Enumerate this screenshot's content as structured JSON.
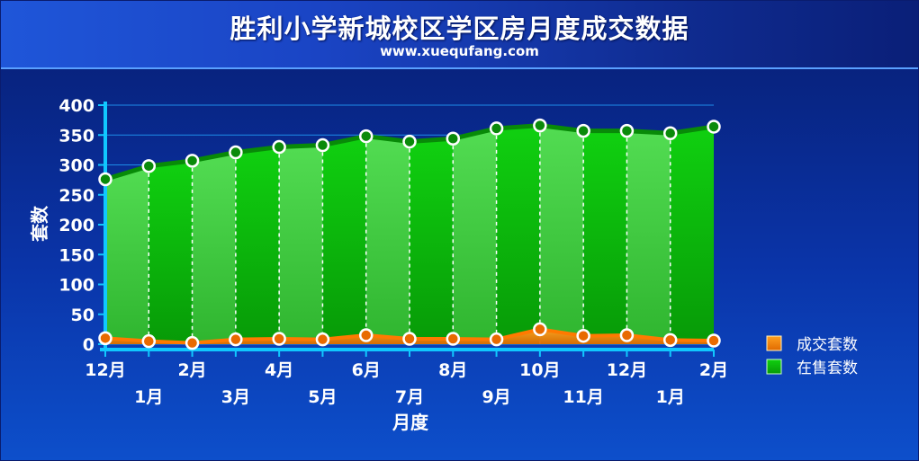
{
  "header": {
    "title": "胜利小学新城校区学区房月度成交数据",
    "subtitle": "www.xuequfang.com"
  },
  "colors": {
    "sale_green": "#14c414",
    "sale_green_light": "#44d644",
    "deal_orange": "#ff8a00",
    "axis": "#0fc8ff"
  },
  "chart_data": {
    "type": "area",
    "categories": [
      "12月",
      "1月",
      "2月",
      "3月",
      "4月",
      "5月",
      "6月",
      "7月",
      "8月",
      "9月",
      "10月",
      "11月",
      "12月",
      "1月",
      "2月"
    ],
    "series": [
      {
        "name": "成交套数",
        "values": [
          10,
          5,
          2,
          8,
          9,
          8,
          15,
          9,
          9,
          8,
          25,
          14,
          15,
          7,
          6
        ]
      },
      {
        "name": "在售套数",
        "values": [
          276,
          298,
          307,
          321,
          330,
          333,
          348,
          339,
          344,
          361,
          366,
          357,
          357,
          353,
          364
        ]
      }
    ],
    "ylabel": "套数",
    "xlabel": "月度",
    "ylim": [
      0,
      400
    ],
    "yticks": [
      0,
      50,
      100,
      150,
      200,
      250,
      300,
      350,
      400
    ],
    "legend_position": "right"
  }
}
